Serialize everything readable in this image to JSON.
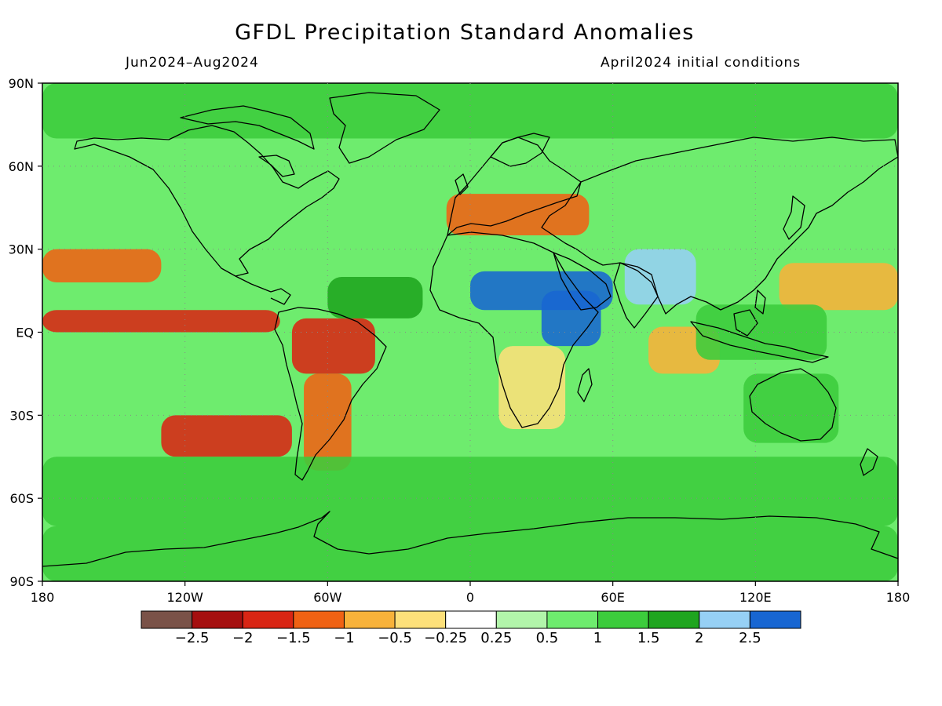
{
  "title": "GFDL Precipitation Standard Anomalies",
  "period": "Jun2024–Aug2024",
  "initial_conditions": "April2024 initial conditions",
  "lat_ticks": [
    "90N",
    "60N",
    "30N",
    "EQ",
    "30S",
    "60S",
    "90S"
  ],
  "lon_ticks": [
    "180",
    "120W",
    "60W",
    "0",
    "60E",
    "120E",
    "180"
  ],
  "colorbar": {
    "colors": [
      "#7a5248",
      "#a50f0f",
      "#d92514",
      "#f06214",
      "#f8b23a",
      "#fde07a",
      "#ffffff",
      "#b2f5aa",
      "#6eec6e",
      "#3ccc3c",
      "#1fa51f",
      "#96d0f5",
      "#1866d2"
    ],
    "labels": [
      "−2.5",
      "−2",
      "−1.5",
      "−1",
      "−0.5",
      "−0.25",
      "0.25",
      "0.5",
      "1",
      "1.5",
      "2",
      "2.5"
    ]
  },
  "chart_data": {
    "type": "heatmap",
    "title": "GFDL Precipitation Standard Anomalies",
    "subtitle_left": "Jun2024–Aug2024",
    "subtitle_right": "April2024 initial conditions",
    "x_range": [
      -180,
      180
    ],
    "y_range": [
      -90,
      90
    ],
    "x_ticks": [
      "180",
      "120W",
      "60W",
      "0",
      "60E",
      "120E",
      "180"
    ],
    "y_ticks": [
      "90N",
      "60N",
      "30N",
      "EQ",
      "30S",
      "60S",
      "90S"
    ],
    "legend_placement": "bottom",
    "levels": [
      -2.5,
      -2,
      -1.5,
      -1,
      -0.5,
      -0.25,
      0.25,
      0.5,
      1,
      1.5,
      2,
      2.5
    ],
    "regions": [
      {
        "name": "eastern-equatorial-pacific",
        "lon": [
          -180,
          -80
        ],
        "lat": [
          0,
          8
        ],
        "value": -2.0
      },
      {
        "name": "northern-south-america",
        "lon": [
          -75,
          -40
        ],
        "lat": [
          -15,
          5
        ],
        "value": -2.0
      },
      {
        "name": "southeast-pacific",
        "lon": [
          -130,
          -75
        ],
        "lat": [
          -45,
          -30
        ],
        "value": -2.0
      },
      {
        "name": "southern-south-america",
        "lon": [
          -70,
          -50
        ],
        "lat": [
          -50,
          -15
        ],
        "value": -1.5
      },
      {
        "name": "north-pacific-subtropics",
        "lon": [
          -180,
          -130
        ],
        "lat": [
          18,
          30
        ],
        "value": -1.5
      },
      {
        "name": "mediterranean-black-sea",
        "lon": [
          -10,
          50
        ],
        "lat": [
          35,
          50
        ],
        "value": -1.5
      },
      {
        "name": "western-pacific-north",
        "lon": [
          130,
          180
        ],
        "lat": [
          8,
          25
        ],
        "value": -1.0
      },
      {
        "name": "eastern-indian-ocean",
        "lon": [
          75,
          105
        ],
        "lat": [
          -15,
          2
        ],
        "value": -1.0
      },
      {
        "name": "southern-africa",
        "lon": [
          12,
          40
        ],
        "lat": [
          -35,
          -5
        ],
        "value": -0.5
      },
      {
        "name": "sahel-arabia",
        "lon": [
          0,
          60
        ],
        "lat": [
          8,
          22
        ],
        "value": 2.5
      },
      {
        "name": "horn-of-africa",
        "lon": [
          30,
          55
        ],
        "lat": [
          -5,
          15
        ],
        "value": 2.5
      },
      {
        "name": "tropical-atlantic",
        "lon": [
          -60,
          -20
        ],
        "lat": [
          5,
          20
        ],
        "value": 1.5
      },
      {
        "name": "india",
        "lon": [
          65,
          95
        ],
        "lat": [
          10,
          30
        ],
        "value": 2.0
      },
      {
        "name": "maritime-continent",
        "lon": [
          95,
          150
        ],
        "lat": [
          -10,
          10
        ],
        "value": 1.0
      },
      {
        "name": "australia",
        "lon": [
          115,
          155
        ],
        "lat": [
          -40,
          -15
        ],
        "value": 1.0
      },
      {
        "name": "southern-ocean",
        "lon": [
          -180,
          180
        ],
        "lat": [
          -70,
          -45
        ],
        "value": 1.0
      },
      {
        "name": "antarctica",
        "lon": [
          -180,
          180
        ],
        "lat": [
          -90,
          -70
        ],
        "value": 1.0
      },
      {
        "name": "arctic",
        "lon": [
          -180,
          180
        ],
        "lat": [
          70,
          90
        ],
        "value": 1.0
      }
    ]
  }
}
